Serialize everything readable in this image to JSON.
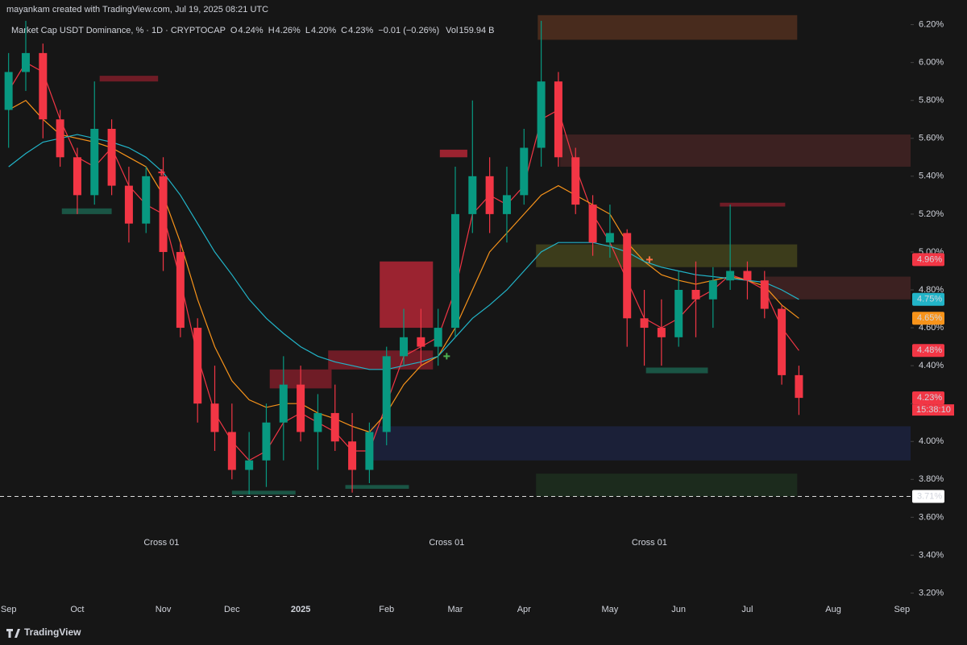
{
  "header": "mayankam created with TradingView.com, Jul 19, 2025 08:21 UTC",
  "legend": {
    "symbol": "Market Cap USDT Dominance, % · 1D · CRYPTOCAP",
    "ohlc": [
      {
        "key": "O",
        "value": "4.24%"
      },
      {
        "key": "H",
        "value": "4.26%"
      },
      {
        "key": "L",
        "value": "4.20%"
      },
      {
        "key": "C",
        "value": "4.23%"
      }
    ],
    "change": "−0.01 (−0.26%)",
    "vol_key": "Vol",
    "vol": "159.94 B"
  },
  "footer": "TradingView",
  "chart_data": {
    "type": "candlestick",
    "categories": [
      "Sep",
      null,
      null,
      null,
      "Oct",
      null,
      null,
      null,
      null,
      "Nov",
      null,
      null,
      null,
      "Dec",
      null,
      null,
      null,
      "2025",
      null,
      null,
      null,
      null,
      "Feb",
      null,
      null,
      null,
      "Mar",
      null,
      null,
      null,
      "Apr",
      null,
      null,
      null,
      null,
      "May",
      null,
      null,
      null,
      "Jun",
      null,
      null,
      null,
      "Jul",
      null,
      null,
      null,
      null,
      "Aug",
      null,
      null,
      null,
      "Sep"
    ],
    "open": [
      5.75,
      5.95,
      6.05,
      5.7,
      5.5,
      5.3,
      5.65,
      5.35,
      5.15,
      5.4,
      5.0,
      4.6,
      4.2,
      4.05,
      3.85,
      3.9,
      4.1,
      4.3,
      4.05,
      4.15,
      4.0,
      3.85,
      4.05,
      4.45,
      4.55,
      4.5,
      4.6,
      5.2,
      5.4,
      5.2,
      5.3,
      5.55,
      5.9,
      5.5,
      5.25,
      5.05,
      5.1,
      4.65,
      4.6,
      4.55,
      4.8,
      4.75,
      4.85,
      4.9,
      4.85,
      4.7,
      4.35,
      null,
      null,
      null,
      null,
      null,
      null
    ],
    "high": [
      6.05,
      6.22,
      6.1,
      5.75,
      5.55,
      5.9,
      5.7,
      5.45,
      5.45,
      5.5,
      5.05,
      4.65,
      4.4,
      4.2,
      4.05,
      4.2,
      4.45,
      4.4,
      4.25,
      4.3,
      4.15,
      4.1,
      4.5,
      4.7,
      4.7,
      4.7,
      5.45,
      5.8,
      5.5,
      5.45,
      5.65,
      6.22,
      5.95,
      5.55,
      5.3,
      5.25,
      5.12,
      4.8,
      4.75,
      4.9,
      4.95,
      4.92,
      5.25,
      4.95,
      4.9,
      4.72,
      4.4,
      null,
      null,
      null,
      null,
      null,
      null
    ],
    "low": [
      5.55,
      5.85,
      5.6,
      5.45,
      5.2,
      5.25,
      5.3,
      5.05,
      5.1,
      4.9,
      4.55,
      4.1,
      3.95,
      3.8,
      3.72,
      3.76,
      3.9,
      4.0,
      3.85,
      3.95,
      3.73,
      3.78,
      3.98,
      4.4,
      4.4,
      4.4,
      4.55,
      5.1,
      5.1,
      5.05,
      5.25,
      5.45,
      5.45,
      5.2,
      4.98,
      4.97,
      4.5,
      4.4,
      4.4,
      4.5,
      4.55,
      4.6,
      4.8,
      4.75,
      4.65,
      4.3,
      4.14,
      null,
      null,
      null,
      null,
      null,
      null
    ],
    "close": [
      5.95,
      6.05,
      5.7,
      5.5,
      5.3,
      5.65,
      5.35,
      5.15,
      5.4,
      5.0,
      4.6,
      4.2,
      4.05,
      3.85,
      3.9,
      4.1,
      4.3,
      4.05,
      4.15,
      4.0,
      3.85,
      4.05,
      4.45,
      4.55,
      4.5,
      4.6,
      5.2,
      5.4,
      5.2,
      5.3,
      5.55,
      5.9,
      5.5,
      5.25,
      5.05,
      5.1,
      4.65,
      4.6,
      4.55,
      4.8,
      4.75,
      4.85,
      4.9,
      4.85,
      4.7,
      4.35,
      4.23,
      null,
      null,
      null,
      null,
      null,
      null
    ],
    "up_color": "#089981",
    "down_color": "#f23645",
    "moving_averages": [
      {
        "color": "#f23645",
        "values": [
          5.85,
          6.0,
          5.95,
          5.7,
          5.5,
          5.45,
          5.55,
          5.35,
          5.25,
          5.2,
          4.85,
          4.45,
          4.15,
          4.0,
          3.9,
          3.95,
          4.1,
          4.15,
          4.1,
          4.05,
          3.95,
          3.95,
          4.2,
          4.45,
          4.5,
          4.55,
          4.8,
          5.2,
          5.3,
          5.25,
          5.35,
          5.7,
          5.75,
          5.45,
          5.2,
          5.05,
          4.85,
          4.65,
          4.6,
          4.65,
          4.75,
          4.8,
          4.88,
          4.85,
          4.8,
          4.6,
          4.48,
          null,
          null,
          null,
          null,
          null,
          null
        ]
      },
      {
        "color": "#f7931a",
        "values": [
          5.75,
          5.8,
          5.7,
          5.62,
          5.6,
          5.58,
          5.55,
          5.5,
          5.45,
          5.3,
          5.05,
          4.75,
          4.5,
          4.32,
          4.22,
          4.18,
          4.2,
          4.2,
          4.15,
          4.12,
          4.08,
          4.05,
          4.15,
          4.3,
          4.4,
          4.45,
          4.6,
          4.8,
          5.0,
          5.1,
          5.2,
          5.3,
          5.35,
          5.3,
          5.25,
          5.2,
          5.05,
          4.95,
          4.88,
          4.85,
          4.83,
          4.85,
          4.87,
          4.85,
          4.82,
          4.72,
          4.65,
          null,
          null,
          null,
          null,
          null,
          null
        ]
      },
      {
        "color": "#22b4c8",
        "values": [
          5.45,
          5.52,
          5.58,
          5.6,
          5.62,
          5.6,
          5.58,
          5.55,
          5.5,
          5.42,
          5.3,
          5.15,
          5.0,
          4.88,
          4.75,
          4.65,
          4.57,
          4.5,
          4.45,
          4.42,
          4.4,
          4.38,
          4.38,
          4.4,
          4.42,
          4.45,
          4.55,
          4.65,
          4.72,
          4.8,
          4.9,
          5.0,
          5.05,
          5.05,
          5.05,
          5.03,
          5.0,
          4.95,
          4.92,
          4.9,
          4.88,
          4.87,
          4.86,
          4.85,
          4.84,
          4.8,
          4.75,
          null,
          null,
          null,
          null,
          null,
          null
        ]
      }
    ],
    "zones": [
      {
        "x": [
          31.3,
          46.4
        ],
        "y": [
          6.12,
          6.25
        ],
        "color": "#5a3320"
      },
      {
        "x": [
          32.6,
          53
        ],
        "y": [
          5.45,
          5.62
        ],
        "color": "#4a2626"
      },
      {
        "x": [
          31.2,
          46.4
        ],
        "y": [
          4.92,
          5.04
        ],
        "color": "#4a4a1e"
      },
      {
        "x": [
          44.5,
          53
        ],
        "y": [
          4.75,
          4.87
        ],
        "color": "#4a2626"
      },
      {
        "x": [
          21.6,
          53
        ],
        "y": [
          3.9,
          4.08
        ],
        "color": "#1e2444"
      },
      {
        "x": [
          31.2,
          46.4
        ],
        "y": [
          3.71,
          3.83
        ],
        "color": "#1f3320"
      },
      {
        "x": [
          22.1,
          25.2
        ],
        "y": [
          4.6,
          4.95
        ],
        "color": "#c8283a"
      },
      {
        "x": [
          19.1,
          25.2
        ],
        "y": [
          4.38,
          4.48
        ],
        "color": "#8e1f2c"
      },
      {
        "x": [
          15.7,
          19.3
        ],
        "y": [
          4.28,
          4.38
        ],
        "color": "#8e1f2c"
      },
      {
        "x": [
          5.8,
          9.2
        ],
        "y": [
          5.9,
          5.93
        ],
        "color": "#8e1f2c"
      },
      {
        "x": [
          25.6,
          27.2
        ],
        "y": [
          5.5,
          5.54
        ],
        "color": "#c8283a"
      },
      {
        "x": [
          41.9,
          45.7
        ],
        "y": [
          5.24,
          5.26
        ],
        "color": "#8e1f2c"
      },
      {
        "x": [
          37.6,
          41.2
        ],
        "y": [
          4.36,
          4.39
        ],
        "color": "#1c6b55"
      },
      {
        "x": [
          3.6,
          6.5
        ],
        "y": [
          5.2,
          5.23
        ],
        "color": "#1c6b55"
      },
      {
        "x": [
          13.5,
          17.2
        ],
        "y": [
          3.72,
          3.74
        ],
        "color": "#1c6b55"
      },
      {
        "x": [
          20.1,
          23.8
        ],
        "y": [
          3.75,
          3.77
        ],
        "color": "#1c6b55"
      }
    ],
    "crosses": [
      {
        "x": 9.4,
        "y": 5.42,
        "color": "#f23645",
        "label": "Cross 01"
      },
      {
        "x": 26.0,
        "y": 4.45,
        "color": "#4caf50",
        "label": "Cross 01"
      },
      {
        "x": 37.8,
        "y": 4.96,
        "color": "#ff7043",
        "label": "Cross 01"
      }
    ],
    "price_tags": [
      {
        "value": 4.96,
        "label": "4.96%",
        "color": "#f23645"
      },
      {
        "value": 4.75,
        "label": "4.75%",
        "color": "#22b4c8"
      },
      {
        "value": 4.65,
        "label": "4.65%",
        "color": "#f7931a"
      },
      {
        "value": 4.48,
        "label": "4.48%",
        "color": "#f23645"
      },
      {
        "value": 4.23,
        "label": "4.23%",
        "color": "#f23645"
      },
      {
        "value": 3.71,
        "label": "3.71%",
        "color": "#ffffff"
      }
    ],
    "countdown": "15:38:10",
    "ylim": [
      3.1,
      6.33
    ],
    "yticks": [
      {
        "value": 3.2,
        "label": "3.20%"
      },
      {
        "value": 3.4,
        "label": "3.40%"
      },
      {
        "value": 3.6,
        "label": "3.60%"
      },
      {
        "value": 3.8,
        "label": "3.80%"
      },
      {
        "value": 4.0,
        "label": "4.00%"
      },
      {
        "value": 4.2,
        "label": "4.20%"
      },
      {
        "value": 4.4,
        "label": "4.40%"
      },
      {
        "value": 4.6,
        "label": "4.60%"
      },
      {
        "value": 4.8,
        "label": "4.80%"
      },
      {
        "value": 5.0,
        "label": "5.00%"
      },
      {
        "value": 5.2,
        "label": "5.20%"
      },
      {
        "value": 5.4,
        "label": "5.40%"
      },
      {
        "value": 5.6,
        "label": "5.60%"
      },
      {
        "value": 5.8,
        "label": "5.80%"
      },
      {
        "value": 6.0,
        "label": "6.00%"
      },
      {
        "value": 6.2,
        "label": "6.20%"
      }
    ],
    "grid": false
  }
}
